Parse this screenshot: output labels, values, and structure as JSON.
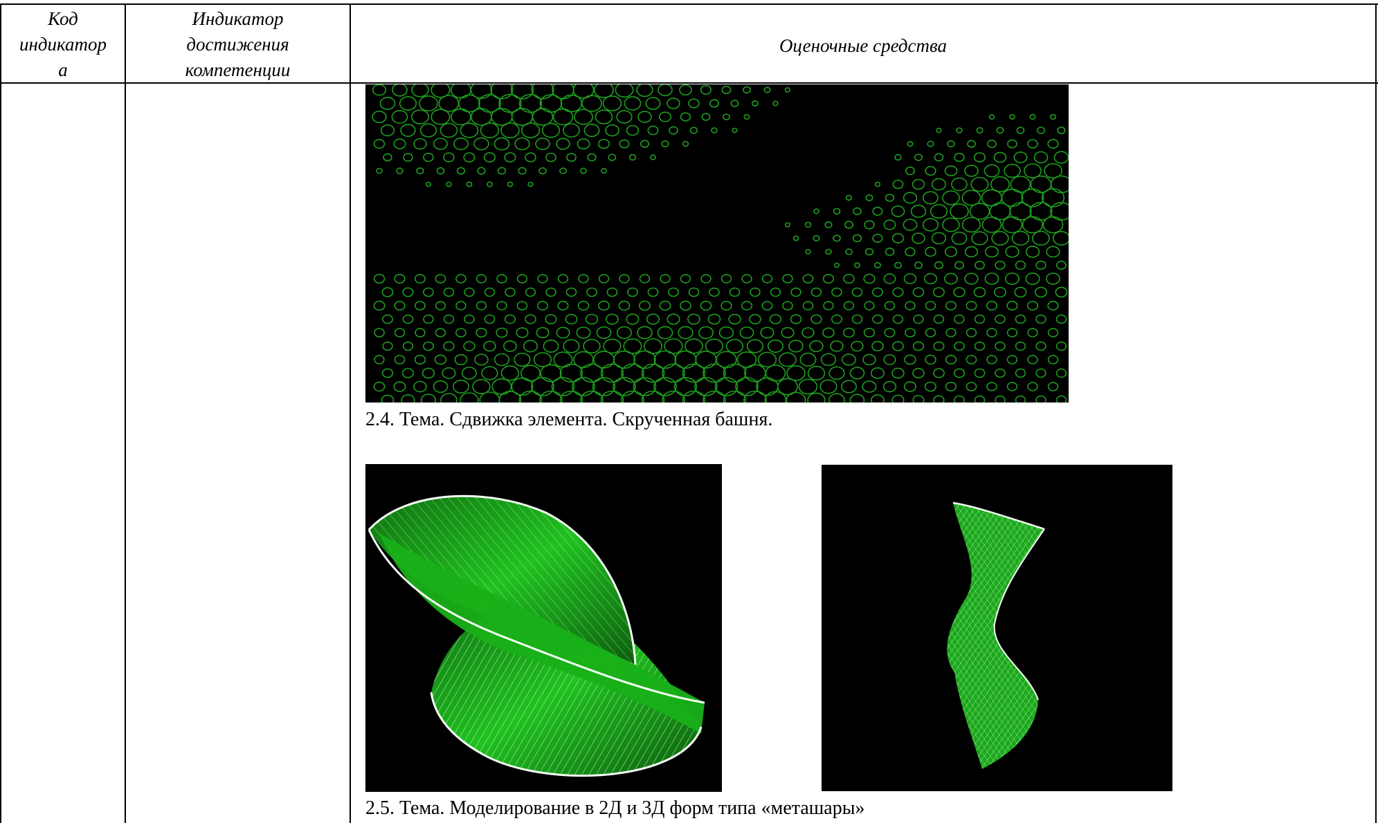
{
  "table": {
    "headers": {
      "code": [
        "Код",
        "индикатор",
        "а"
      ],
      "indicator": [
        "Индикатор",
        "достижения",
        "компетенции"
      ],
      "assessment": "Оценочные средства"
    }
  },
  "content": {
    "figures": [
      {
        "name": "ellipse-grid-image",
        "caption": ""
      },
      {
        "name": "twisted-shell-image",
        "caption": ""
      },
      {
        "name": "twisted-tower-image",
        "caption": ""
      }
    ],
    "captions": {
      "topic_2_4": "2.4. Тема. Сдвижка элемента. Скрученная башня.",
      "topic_2_5": "2.5. Тема. Моделирование в 2Д и 3Д форм типа «меташары»"
    }
  },
  "colors": {
    "image_background": "#000000",
    "wire_green": "#1e9e1e",
    "surface_green": "#19b219",
    "mesh_white": "#e8ffe8"
  }
}
